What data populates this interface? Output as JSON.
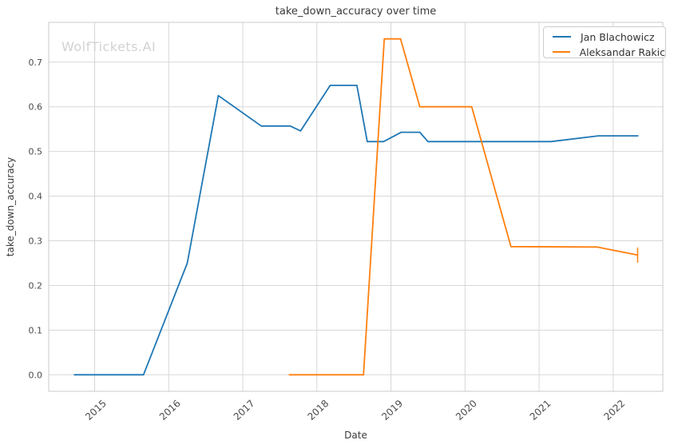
{
  "chart_data": {
    "type": "line",
    "title": "take_down_accuracy over time",
    "xlabel": "Date",
    "ylabel": "take_down_accuracy",
    "watermark": "WolfTickets.AI",
    "grid": true,
    "legend_position": "upper right",
    "xlim": [
      2014.38,
      2022.67
    ],
    "ylim": [
      -0.037,
      0.789
    ],
    "x_ticks": [
      "2015",
      "2016",
      "2017",
      "2018",
      "2019",
      "2020",
      "2021",
      "2022"
    ],
    "y_ticks": [
      "0.0",
      "0.1",
      "0.2",
      "0.3",
      "0.4",
      "0.5",
      "0.6",
      "0.7"
    ],
    "series": [
      {
        "name": "Jan Blachowicz",
        "color": "#1f77b4",
        "points": [
          [
            2014.72,
            0.0
          ],
          [
            2015.66,
            0.0
          ],
          [
            2016.25,
            0.25
          ],
          [
            2016.67,
            0.625
          ],
          [
            2017.25,
            0.557
          ],
          [
            2017.64,
            0.557
          ],
          [
            2017.78,
            0.546
          ],
          [
            2018.18,
            0.648
          ],
          [
            2018.54,
            0.648
          ],
          [
            2018.68,
            0.522
          ],
          [
            2018.9,
            0.522
          ],
          [
            2019.14,
            0.543
          ],
          [
            2019.39,
            0.543
          ],
          [
            2019.5,
            0.522
          ],
          [
            2021.16,
            0.522
          ],
          [
            2021.8,
            0.535
          ],
          [
            2022.34,
            0.535
          ]
        ]
      },
      {
        "name": "Aleksandar Rakic",
        "color": "#ff7f0e",
        "points": [
          [
            2017.62,
            0.0
          ],
          [
            2018.63,
            0.0
          ],
          [
            2018.91,
            0.752
          ],
          [
            2019.13,
            0.752
          ],
          [
            2019.39,
            0.6
          ],
          [
            2020.09,
            0.6
          ],
          [
            2020.62,
            0.287
          ],
          [
            2021.78,
            0.286
          ],
          [
            2022.33,
            0.268
          ]
        ],
        "end_tick_half_height": 0.017
      }
    ]
  },
  "colors": {
    "background": "#ffffff",
    "grid": "#d7d7d7",
    "spine": "#c9c9c9",
    "title_text": "#3a3a3a",
    "tick_text": "#4a4a4a",
    "watermark": "#d2d2d2",
    "legend_border": "#cccccc"
  }
}
